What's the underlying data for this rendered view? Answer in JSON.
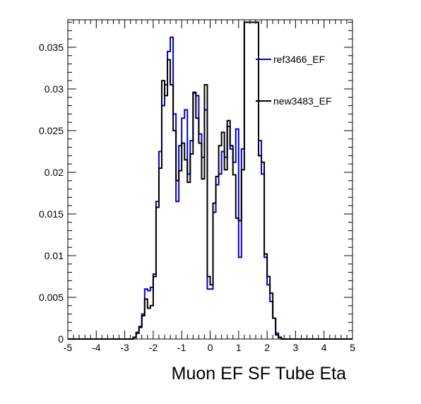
{
  "chart_data": {
    "type": "line",
    "xlabel": "Muon EF SF Tube Eta",
    "ylabel": "",
    "xlim": [
      -5,
      5
    ],
    "ylim": [
      0,
      0.0383
    ],
    "x_ticks": [
      "-5",
      "-4",
      "-3",
      "-2",
      "-1",
      "0",
      "1",
      "2",
      "3",
      "4",
      "5"
    ],
    "y_ticks": [
      "0",
      "0.005",
      "0.01",
      "0.015",
      "0.02",
      "0.025",
      "0.03",
      "0.035"
    ],
    "bin_edges_start": -5,
    "bin_width": 0.1,
    "legend_position": "top-right",
    "series": [
      {
        "name": "ref3466_EF",
        "color": "#0000cc",
        "values": [
          0,
          0,
          0,
          0,
          0,
          0,
          0,
          0,
          0,
          0,
          0,
          0,
          0,
          0,
          0,
          0,
          0,
          0,
          0,
          0,
          0,
          0,
          0,
          0.0002,
          0.0008,
          0.0015,
          0.003,
          0.006,
          0.0058,
          0.0062,
          0.0078,
          0.0165,
          0.0225,
          0.028,
          0.0305,
          0.0345,
          0.0362,
          0.027,
          0.0165,
          0.0232,
          0.0265,
          0.0275,
          0.0198,
          0.0238,
          0.0295,
          0.0292,
          0.0246,
          0.0218,
          0.0275,
          0.006,
          0.006,
          0.0152,
          0.0185,
          0.0198,
          0.0225,
          0.0218,
          0.0255,
          0.0228,
          0.0212,
          0.0252,
          0.0098,
          0.0228,
          0.038,
          0.038,
          0.038,
          0.038,
          0.038,
          0.0238,
          0.0198,
          0.0098,
          0.0065,
          0.0045,
          0.0025,
          0.0007,
          0.0002,
          0,
          0,
          0,
          0,
          0,
          0,
          0,
          0,
          0,
          0,
          0,
          0,
          0,
          0,
          0,
          0,
          0,
          0,
          0,
          0,
          0,
          0,
          0,
          0,
          0
        ]
      },
      {
        "name": "new3483_EF",
        "color": "#000000",
        "values": [
          0,
          0,
          0,
          0,
          0,
          0,
          0,
          0,
          0,
          0,
          0,
          0,
          0,
          0,
          0,
          0,
          0,
          0,
          0,
          0,
          0,
          0,
          0,
          0.0002,
          0.0007,
          0.0014,
          0.0028,
          0.0048,
          0.0037,
          0.004,
          0.0075,
          0.0158,
          0.0205,
          0.031,
          0.0292,
          0.0335,
          0.0305,
          0.025,
          0.019,
          0.0202,
          0.0235,
          0.0215,
          0.0188,
          0.0222,
          0.0296,
          0.0265,
          0.0235,
          0.0192,
          0.0305,
          0.0075,
          0.0065,
          0.0163,
          0.0195,
          0.0232,
          0.0248,
          0.0203,
          0.0262,
          0.0232,
          0.0197,
          0.0145,
          0.0142,
          0.0203,
          0.038,
          0.038,
          0.038,
          0.038,
          0.038,
          0.022,
          0.0212,
          0.0102,
          0.0075,
          0.0055,
          0.0025,
          0.0005,
          0.0002,
          0,
          0,
          0,
          0,
          0,
          0,
          0,
          0,
          0,
          0,
          0,
          0,
          0,
          0,
          0,
          0,
          0,
          0,
          0,
          0,
          0,
          0,
          0,
          0,
          0
        ]
      }
    ]
  }
}
